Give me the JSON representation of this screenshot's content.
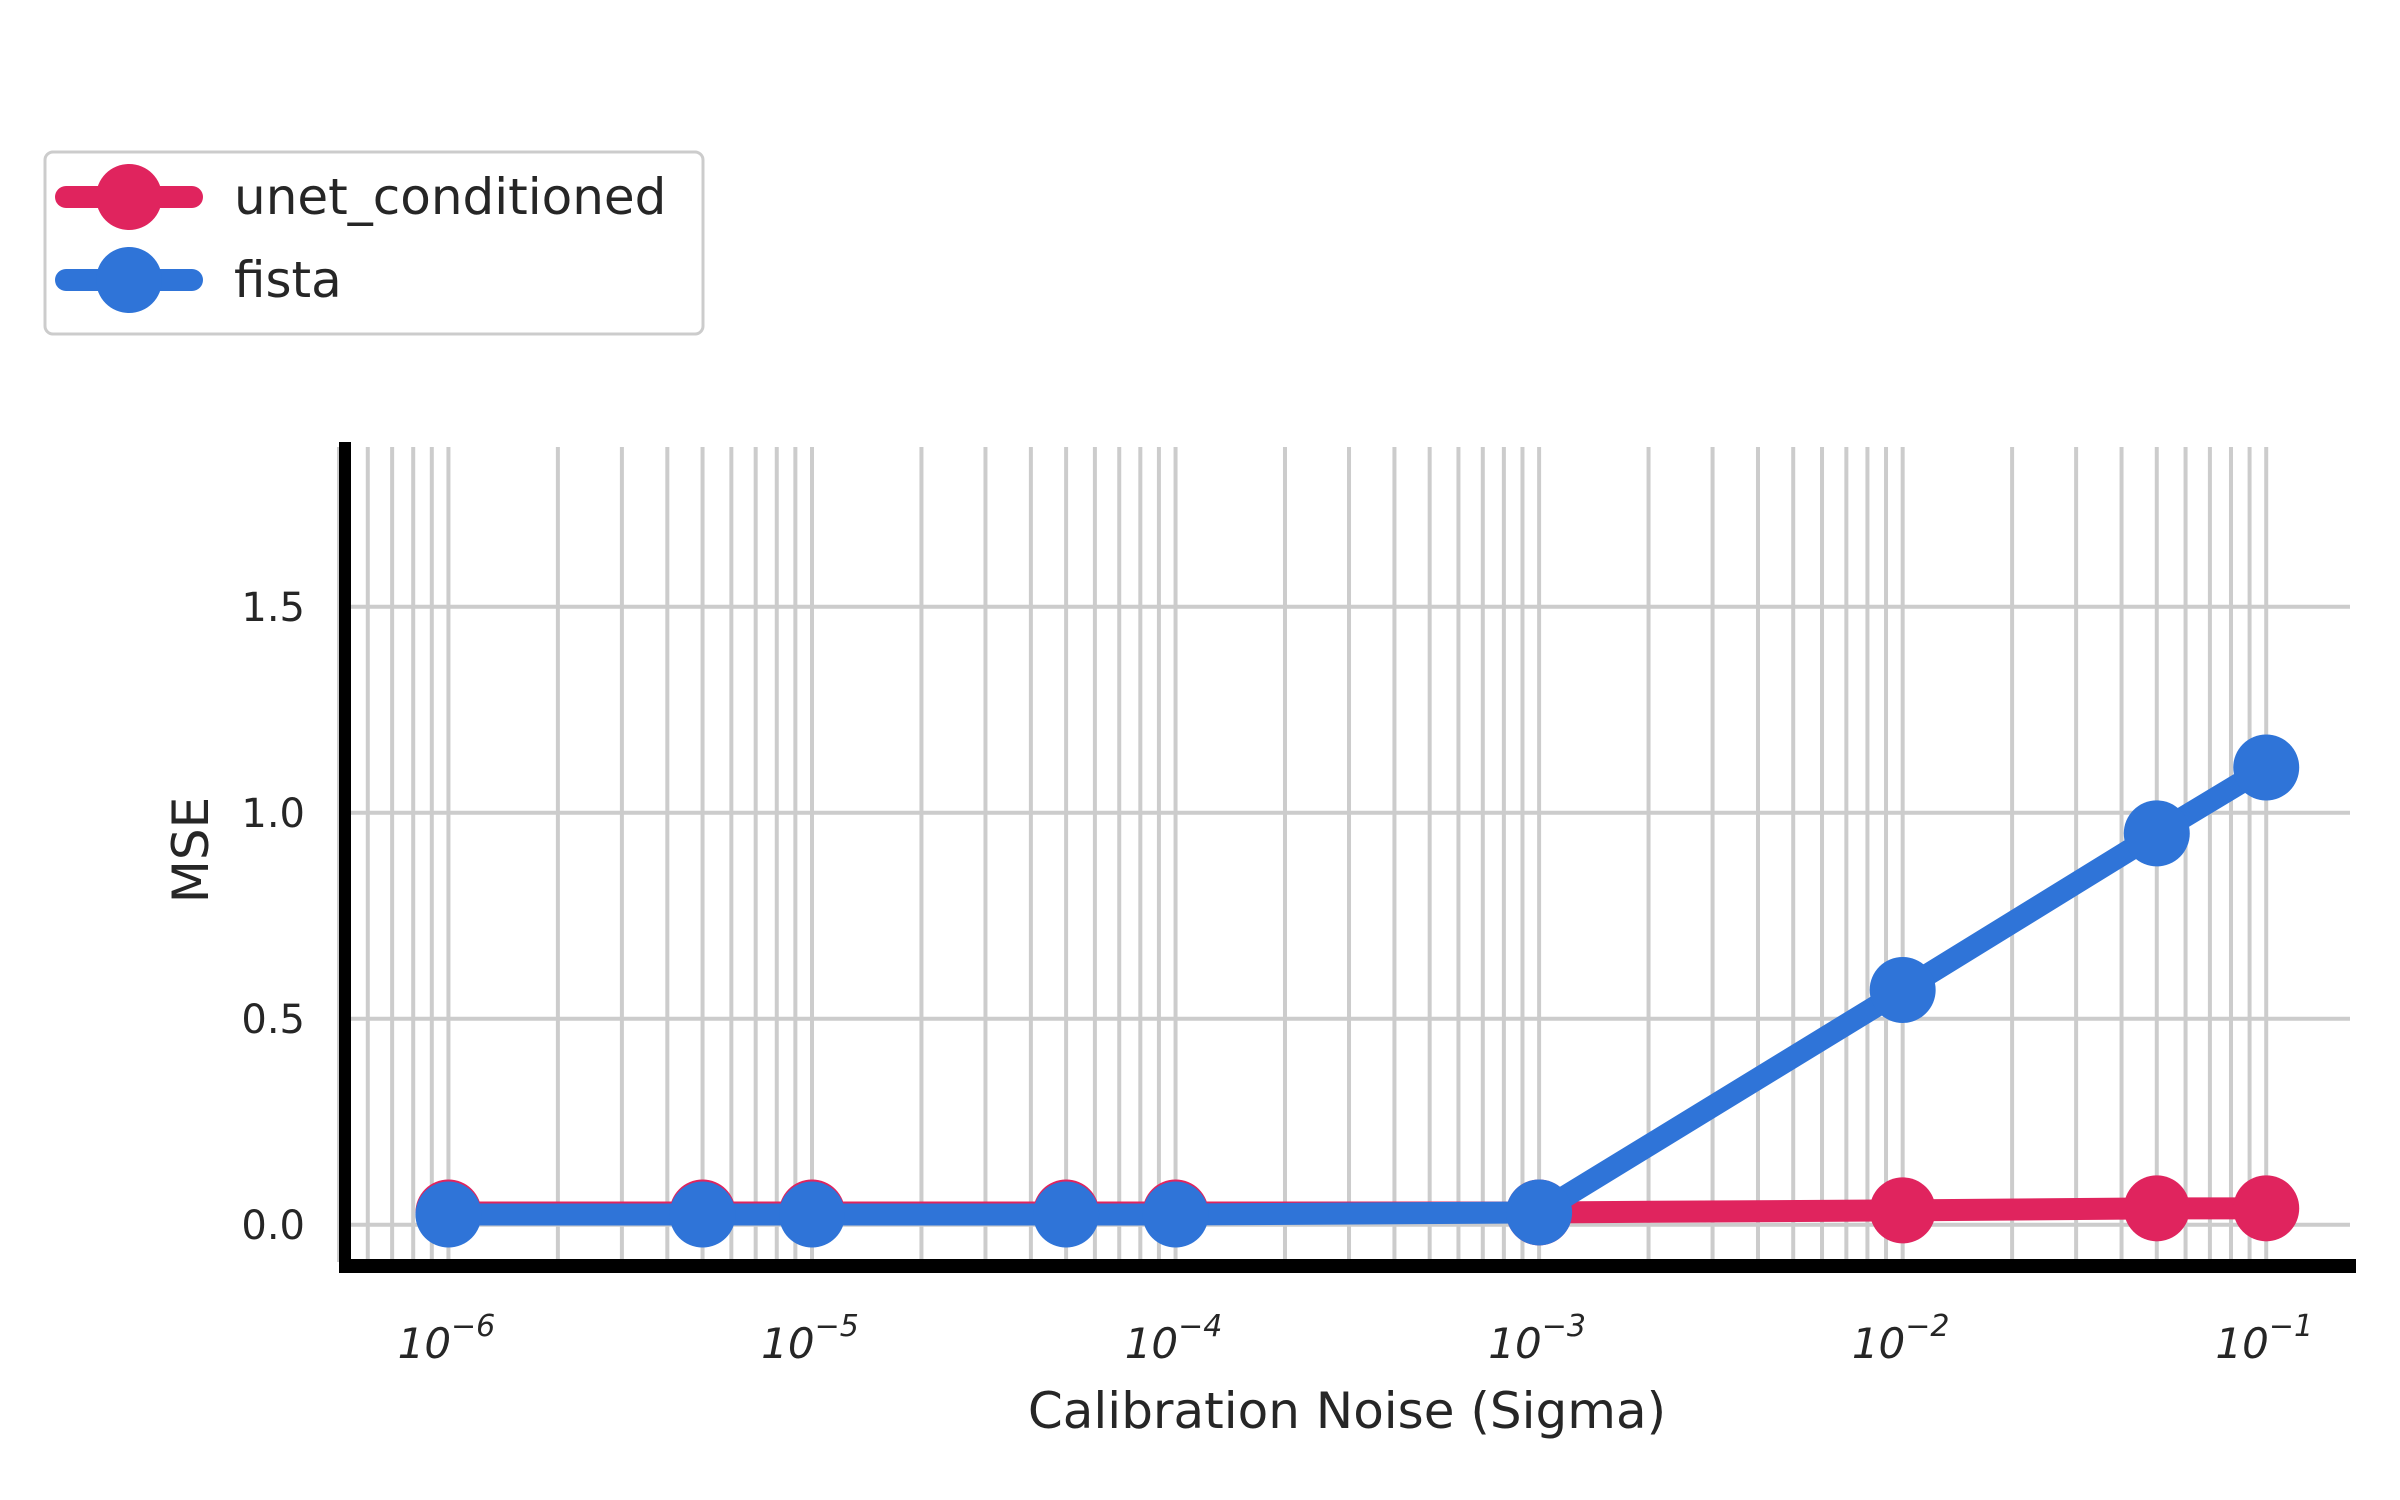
{
  "chart_data": {
    "type": "line",
    "title": "",
    "xlabel": "Calibration Noise (Sigma)",
    "ylabel": "MSE",
    "xscale": "log",
    "xlim": [
      5e-07,
      0.17
    ],
    "ylim": [
      -0.1,
      1.9
    ],
    "grid": true,
    "legend_position": "top-left",
    "x": [
      1e-06,
      5e-06,
      1e-05,
      5e-05,
      0.0001,
      0.001,
      0.01,
      0.05,
      0.1
    ],
    "yticks": [
      {
        "value": 0.0,
        "label": "0.0"
      },
      {
        "value": 0.5,
        "label": "0.5"
      },
      {
        "value": 1.0,
        "label": "1.0"
      },
      {
        "value": 1.5,
        "label": "1.5"
      }
    ],
    "xticks": [
      {
        "value": 1e-06,
        "base": "10",
        "exp": "−6"
      },
      {
        "value": 1e-05,
        "base": "10",
        "exp": "−5"
      },
      {
        "value": 0.0001,
        "base": "10",
        "exp": "−4"
      },
      {
        "value": 0.001,
        "base": "10",
        "exp": "−3"
      },
      {
        "value": 0.01,
        "base": "10",
        "exp": "−2"
      },
      {
        "value": 0.1,
        "base": "10",
        "exp": "−1"
      }
    ],
    "series": [
      {
        "name": "unet_conditioned",
        "color": "#e0245e",
        "values": [
          0.03,
          0.03,
          0.03,
          0.03,
          0.03,
          0.03,
          0.035,
          0.04,
          0.04
        ]
      },
      {
        "name": "fista",
        "color": "#2f74d8",
        "values": [
          0.025,
          0.025,
          0.025,
          0.025,
          0.025,
          0.03,
          0.57,
          0.95,
          1.11
        ]
      }
    ]
  }
}
